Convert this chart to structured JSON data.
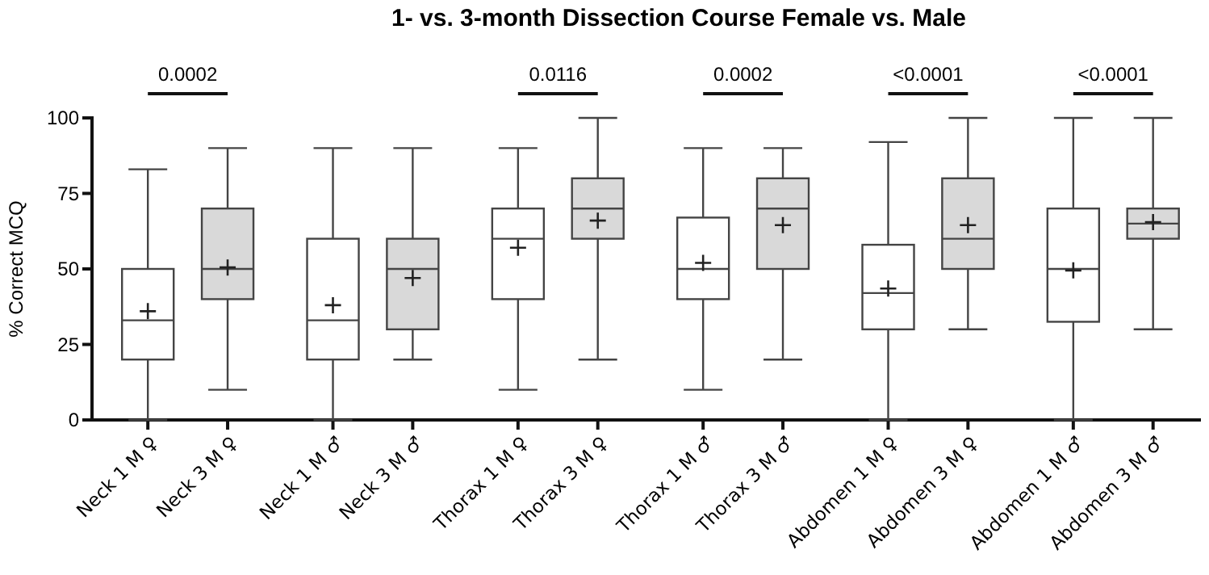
{
  "chart_data": {
    "type": "box",
    "title": "1- vs. 3-month Dissection Course Female vs. Male",
    "ylabel": "% Correct MCQ",
    "categories": [
      "Neck 1 M ♀",
      "Neck 3 M ♀",
      "Neck 1 M ♂",
      "Neck 3 M ♂",
      "Thorax 1 M ♀",
      "Thorax 3 M ♀",
      "Thorax 1 M ♂",
      "Thorax 3 M ♂",
      "Abdomen 1 M ♀",
      "Abdomen 3 M ♀",
      "Abdomen 1 M ♂",
      "Abdomen 3 M ♂"
    ],
    "colors": [
      "#ffffff",
      "#d9d9d9",
      "#ffffff",
      "#d9d9d9",
      "#ffffff",
      "#d9d9d9",
      "#ffffff",
      "#d9d9d9",
      "#ffffff",
      "#d9d9d9",
      "#ffffff",
      "#d9d9d9"
    ],
    "boxes": [
      {
        "low": 0,
        "q1": 20,
        "median": 33,
        "q3": 50,
        "high": 83,
        "mean": 36
      },
      {
        "low": 10,
        "q1": 40,
        "median": 50,
        "q3": 70,
        "high": 90,
        "mean": 50.5
      },
      {
        "low": 0,
        "q1": 20,
        "median": 33,
        "q3": 60,
        "high": 90,
        "mean": 38
      },
      {
        "low": 20,
        "q1": 30,
        "median": 50,
        "q3": 60,
        "high": 90,
        "mean": 47
      },
      {
        "low": 10,
        "q1": 40,
        "median": 60,
        "q3": 70,
        "high": 90,
        "mean": 57
      },
      {
        "low": 20,
        "q1": 60,
        "median": 70,
        "q3": 80,
        "high": 100,
        "mean": 66
      },
      {
        "low": 10,
        "q1": 40,
        "median": 50,
        "q3": 67,
        "high": 90,
        "mean": 52
      },
      {
        "low": 20,
        "q1": 50,
        "median": 70,
        "q3": 80,
        "high": 90,
        "mean": 64.5
      },
      {
        "low": 0,
        "q1": 30,
        "median": 42,
        "q3": 58,
        "high": 92,
        "mean": 43.5
      },
      {
        "low": 30,
        "q1": 50,
        "median": 60,
        "q3": 80,
        "high": 100,
        "mean": 64.5
      },
      {
        "low": 0,
        "q1": 32.5,
        "median": 50,
        "q3": 70,
        "high": 100,
        "mean": 49.5
      },
      {
        "low": 30,
        "q1": 60,
        "median": 65,
        "q3": 70,
        "high": 100,
        "mean": 65.5
      }
    ],
    "ylim": [
      0,
      100
    ],
    "yticks": [
      0,
      25,
      50,
      75,
      100
    ],
    "annotations": [
      "0.0002",
      "0.0116",
      "0.0002",
      "<0.0001",
      "<0.0001"
    ]
  }
}
